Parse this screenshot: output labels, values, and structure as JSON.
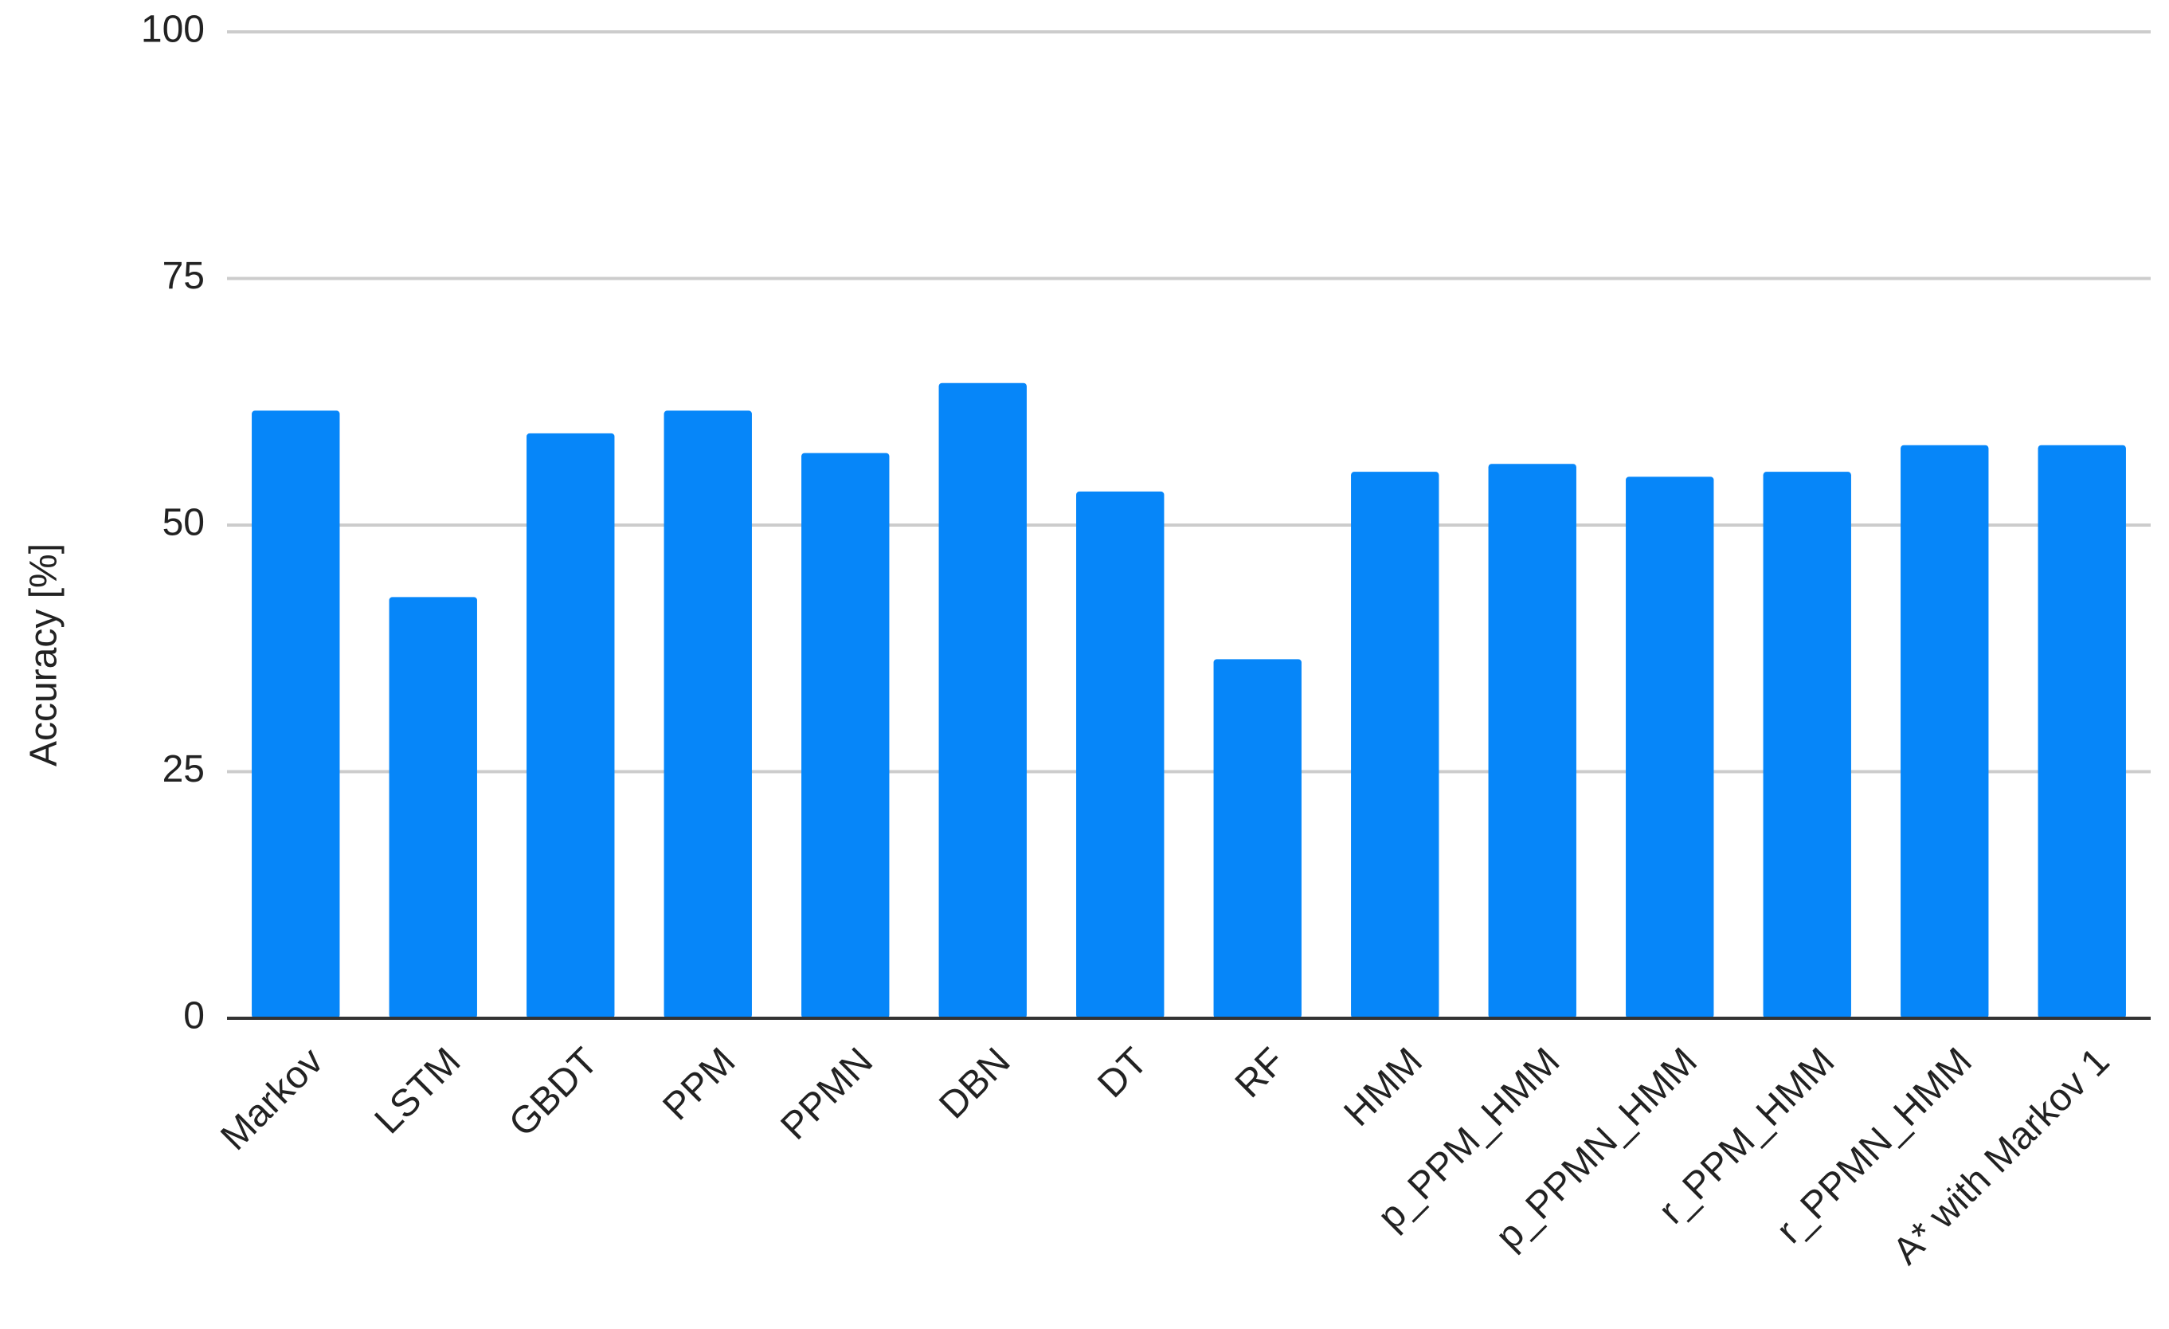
{
  "chart_data": {
    "type": "bar",
    "y_label": "Accuracy [%]",
    "categories": [
      "Markov",
      "LSTM",
      "GBDT",
      "PPM",
      "PPMN",
      "DBN",
      "DT",
      "RF",
      "HMM",
      "p_PPM_HMM",
      "p_PPMN_HMM",
      "r_PPM_HMM",
      "r_PPMN_HMM",
      "A* with Markov 1"
    ],
    "values": [
      61.6,
      42.7,
      59.3,
      61.6,
      57.3,
      64.4,
      53.4,
      36.4,
      55.4,
      56.2,
      54.9,
      55.4,
      58.1,
      58.1
    ],
    "color": "#0686f9",
    "ylim": [
      0,
      100
    ],
    "yticks": [
      0,
      25,
      50,
      75,
      100
    ],
    "grid": true
  }
}
